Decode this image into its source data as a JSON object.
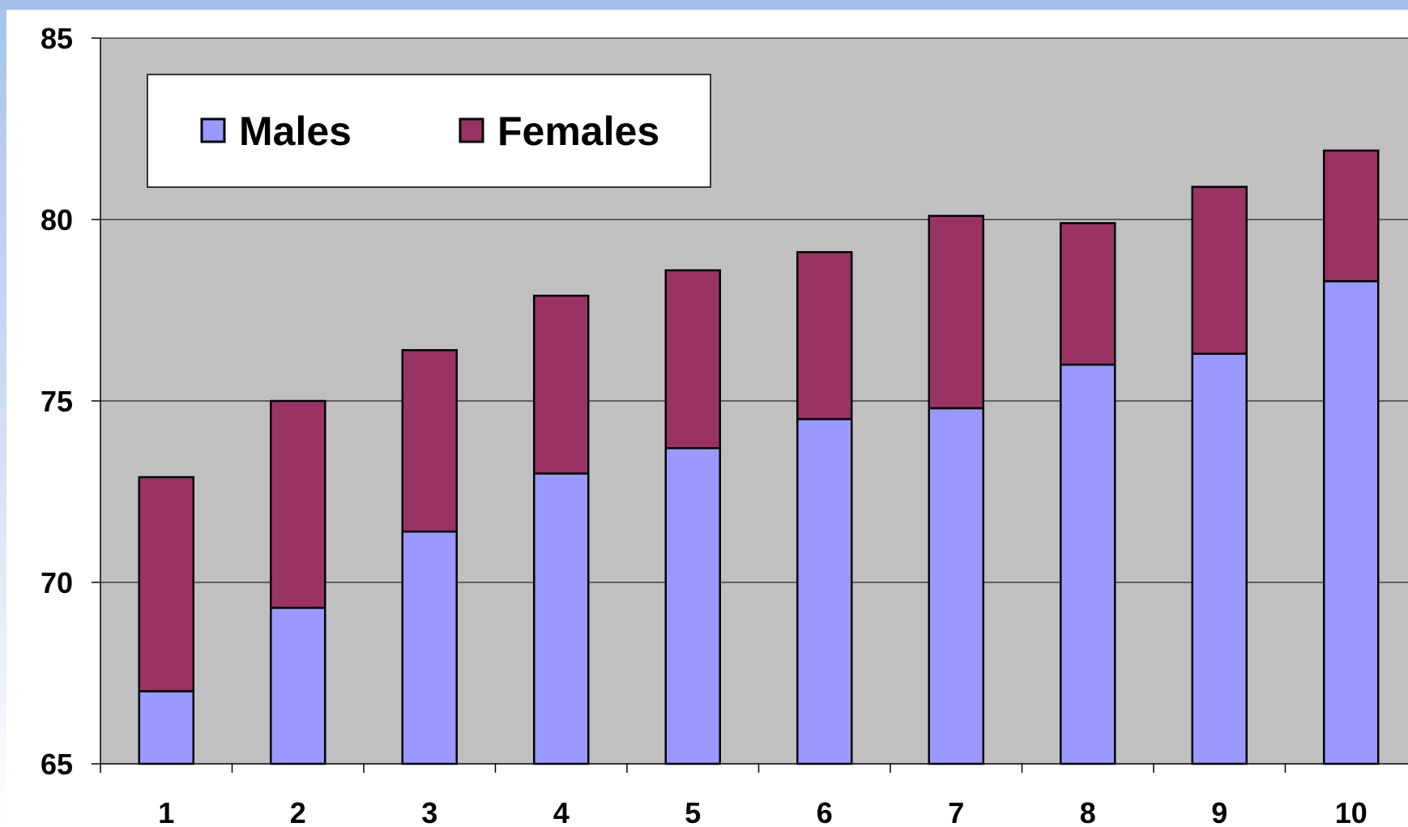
{
  "chart_data": {
    "type": "bar",
    "stacked": true,
    "categories": [
      "1",
      "2",
      "3",
      "4",
      "5",
      "6",
      "7",
      "8",
      "9",
      "10"
    ],
    "series": [
      {
        "name": "Males",
        "color": "#9999ff",
        "top_values": [
          67.0,
          69.3,
          71.4,
          73.0,
          73.7,
          74.5,
          74.8,
          76.0,
          76.3,
          78.3
        ]
      },
      {
        "name": "Females",
        "color": "#993366",
        "top_values": [
          72.9,
          75.0,
          76.4,
          77.9,
          78.6,
          79.1,
          80.1,
          79.9,
          80.9,
          81.9
        ]
      }
    ],
    "title": "",
    "xlabel": "",
    "ylabel": "",
    "ylim": [
      65,
      85
    ],
    "yticks": [
      65,
      70,
      75,
      80,
      85
    ],
    "grid": true,
    "legend": "top-left",
    "plot_background": "#c0c0c0"
  }
}
